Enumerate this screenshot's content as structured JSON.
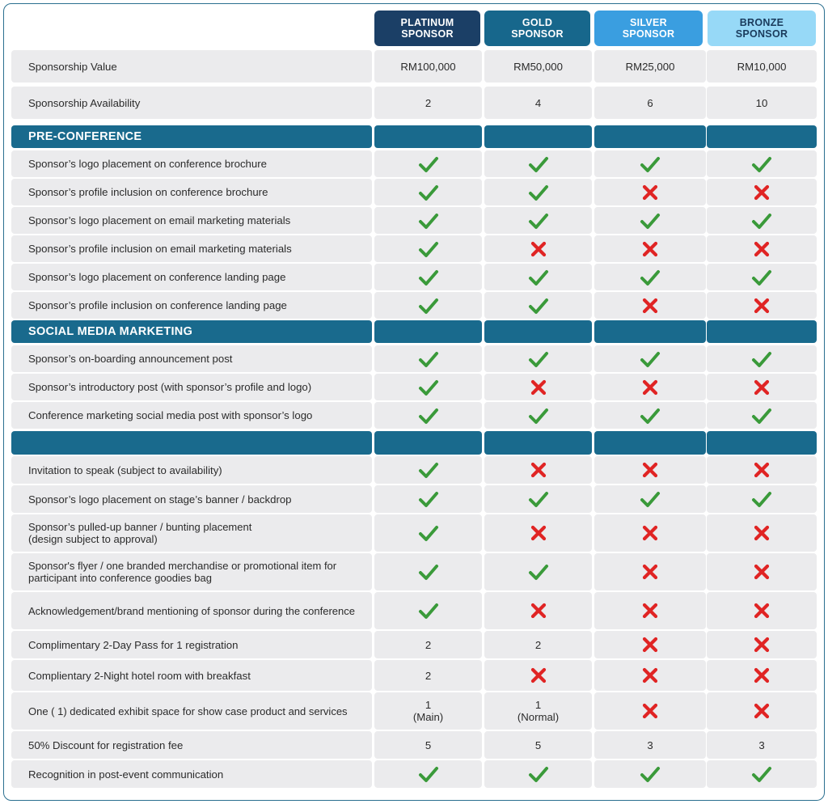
{
  "colors": {
    "platinum": "#1b3f66",
    "gold": "#17678c",
    "silver": "#3a9ee0",
    "bronze": "#97d9f7",
    "section_band": "#196a8d",
    "row_bg": "#ebebed",
    "check": "#3a9a3a",
    "cross": "#e02424"
  },
  "tiers": [
    {
      "line1": "PLATINUM",
      "line2": "SPONSOR"
    },
    {
      "line1": "GOLD",
      "line2": "SPONSOR"
    },
    {
      "line1": "SILVER",
      "line2": "SPONSOR"
    },
    {
      "line1": "BRONZE",
      "line2": "SPONSOR"
    }
  ],
  "summary": [
    {
      "label": "Sponsorship Value",
      "values": [
        "RM100,000",
        "RM50,000",
        "RM25,000",
        "RM10,000"
      ]
    },
    {
      "label": "Sponsorship Availability",
      "values": [
        "2",
        "4",
        "6",
        "10"
      ]
    }
  ],
  "sections": [
    {
      "title": "PRE-CONFERENCE",
      "rows": [
        {
          "label": "Sponsor’s logo placement on conference brochure",
          "values": [
            "check",
            "check",
            "check",
            "check"
          ]
        },
        {
          "label": "Sponsor’s profile inclusion on conference brochure",
          "values": [
            "check",
            "check",
            "cross",
            "cross"
          ]
        },
        {
          "label": "Sponsor’s logo placement on email marketing materials",
          "values": [
            "check",
            "check",
            "check",
            "check"
          ]
        },
        {
          "label": "Sponsor’s profile inclusion on email marketing materials",
          "values": [
            "check",
            "cross",
            "cross",
            "cross"
          ]
        },
        {
          "label": "Sponsor’s logo placement on conference landing page",
          "values": [
            "check",
            "check",
            "check",
            "check"
          ]
        },
        {
          "label": "Sponsor’s profile inclusion on conference landing page",
          "values": [
            "check",
            "check",
            "cross",
            "cross"
          ]
        }
      ]
    },
    {
      "title": "SOCIAL MEDIA MARKETING",
      "rows": [
        {
          "label": "Sponsor’s on-boarding announcement post",
          "values": [
            "check",
            "check",
            "check",
            "check"
          ]
        },
        {
          "label": "Sponsor’s introductory post (with sponsor’s profile and logo)",
          "values": [
            "check",
            "cross",
            "cross",
            "cross"
          ]
        },
        {
          "label": "Conference marketing social media post with sponsor’s logo",
          "values": [
            "check",
            "check",
            "check",
            "check"
          ]
        }
      ]
    },
    {
      "title": "",
      "rows": [
        {
          "label": "Invitation to speak (subject to availability)",
          "values": [
            "check",
            "cross",
            "cross",
            "cross"
          ]
        },
        {
          "label": "Sponsor’s logo placement on stage’s banner / backdrop",
          "values": [
            "check",
            "check",
            "check",
            "check"
          ]
        },
        {
          "label": "Sponsor’s pulled-up banner / bunting placement\n(design subject to approval)",
          "values": [
            "check",
            "cross",
            "cross",
            "cross"
          ]
        },
        {
          "label": "Sponsor's flyer / one branded merchandise or promotional item for participant into conference goodies bag",
          "values": [
            "check",
            "check",
            "cross",
            "cross"
          ]
        },
        {
          "label": "Acknowledgement/brand mentioning of sponsor during the conference",
          "values": [
            "check",
            "cross",
            "cross",
            "cross"
          ]
        },
        {
          "label": "Complimentary 2-Day Pass for 1 registration",
          "values": [
            "2",
            "2",
            "cross",
            "cross"
          ]
        },
        {
          "label": "Complientary 2-Night hotel room with breakfast",
          "values": [
            "2",
            "cross",
            "cross",
            "cross"
          ]
        },
        {
          "label": "One ( 1) dedicated exhibit space for show case product and services",
          "values": [
            "1\n(Main)",
            "1\n(Normal)",
            "cross",
            "cross"
          ]
        },
        {
          "label": "50% Discount for registration fee",
          "values": [
            "5",
            "5",
            "3",
            "3"
          ]
        },
        {
          "label": "Recognition in post-event communication",
          "values": [
            "check",
            "check",
            "check",
            "check"
          ]
        }
      ]
    }
  ]
}
